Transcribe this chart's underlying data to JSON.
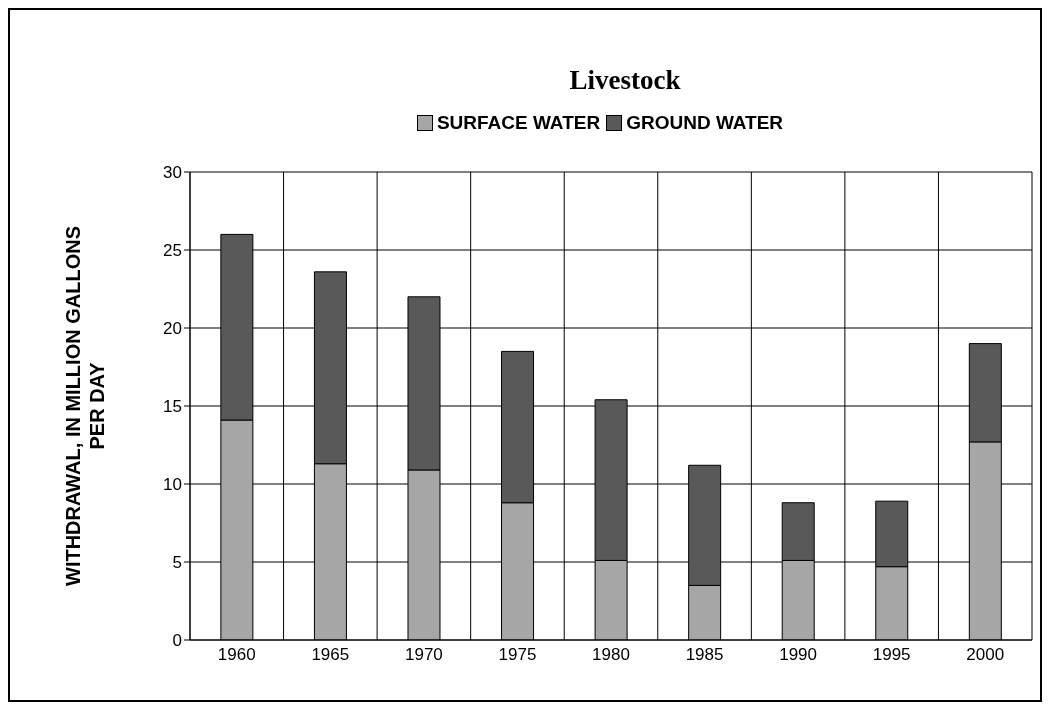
{
  "chart_data": {
    "type": "bar",
    "title": "Livestock",
    "ylabel": "WITHDRAWAL, IN MILLION GALLONS PER DAY",
    "categories": [
      "1960",
      "1965",
      "1970",
      "1975",
      "1980",
      "1985",
      "1990",
      "1995",
      "2000"
    ],
    "stacked": true,
    "series": [
      {
        "name": "SURFACE WATER",
        "color": "#a6a6a6",
        "values": [
          14.1,
          11.3,
          10.9,
          8.8,
          5.1,
          3.5,
          5.1,
          4.7,
          12.7
        ]
      },
      {
        "name": "GROUND WATER",
        "color": "#595959",
        "values": [
          11.9,
          12.3,
          11.1,
          9.7,
          10.3,
          7.7,
          3.7,
          4.2,
          6.3
        ]
      }
    ],
    "ylim": [
      0,
      30
    ],
    "yticks": [
      0,
      5,
      10,
      15,
      20,
      25,
      30
    ],
    "grid": true,
    "legend": "top"
  }
}
